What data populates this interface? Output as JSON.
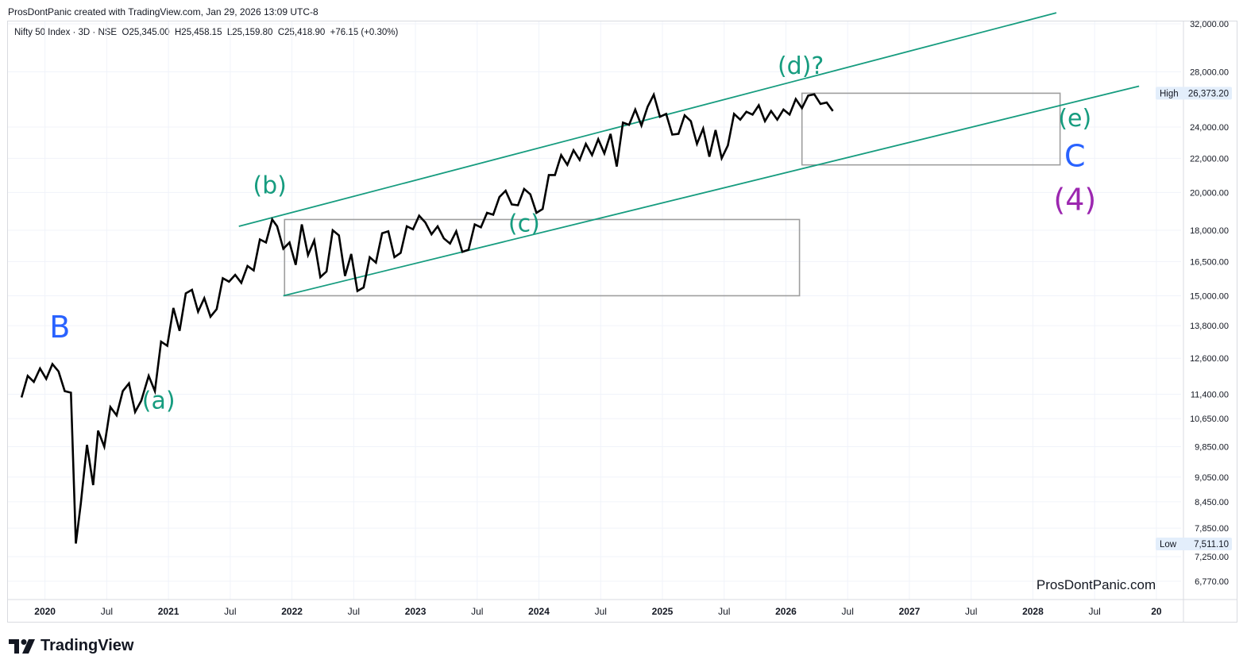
{
  "header": {
    "attribution": "ProsDontPanic created with TradingView.com, Jan 29, 2026 13:09 UTC-8"
  },
  "symbol_info": {
    "name": "Nifty 50 Index · 3D · NSE",
    "open": "O25,345.00",
    "high": "H25,458.15",
    "low": "L25,159.80",
    "close": "C25,418.90",
    "change": "+76.15 (+0.30%)"
  },
  "branding": {
    "logo_text": "TradingView",
    "watermark": "ProsDontPanic.com"
  },
  "colors": {
    "price_line": "#000000",
    "channel": "#169c7f",
    "box": "#9e9e9e",
    "wave_blue": "#2962ff",
    "wave_green": "#169c7f",
    "wave_purple": "#9c27b0",
    "grid": "#f0f3fa"
  },
  "chart_data": {
    "type": "line",
    "title": "Nifty 50 Index · 3D · NSE",
    "scale": "log",
    "ylim": [
      6600,
      33000
    ],
    "xlim": [
      2019.7,
      2029.2
    ],
    "y_ticks": [
      6770,
      7250,
      7850,
      8450,
      9050,
      9850,
      10650,
      11400,
      12600,
      13800,
      15000,
      16500,
      18000,
      20000,
      22000,
      24000,
      28000,
      32000
    ],
    "y_tick_labels": [
      "6,770.00",
      "7,250.00",
      "7,850.00",
      "8,450.00",
      "9,050.00",
      "9,850.00",
      "10,650.00",
      "11,400.00",
      "12,600.00",
      "13,800.00",
      "15,000.00",
      "16,500.00",
      "18,000.00",
      "20,000.00",
      "22,000.00",
      "24,000.00",
      "28,000.00",
      "32,000.00"
    ],
    "x_ticks": [
      {
        "t": 2020.0,
        "label": "2020",
        "year": true
      },
      {
        "t": 2020.5,
        "label": "Jul",
        "year": false
      },
      {
        "t": 2021.0,
        "label": "2021",
        "year": true
      },
      {
        "t": 2021.5,
        "label": "Jul",
        "year": false
      },
      {
        "t": 2022.0,
        "label": "2022",
        "year": true
      },
      {
        "t": 2022.5,
        "label": "Jul",
        "year": false
      },
      {
        "t": 2023.0,
        "label": "2023",
        "year": true
      },
      {
        "t": 2023.5,
        "label": "Jul",
        "year": false
      },
      {
        "t": 2024.0,
        "label": "2024",
        "year": true
      },
      {
        "t": 2024.5,
        "label": "Jul",
        "year": false
      },
      {
        "t": 2025.0,
        "label": "2025",
        "year": true
      },
      {
        "t": 2025.5,
        "label": "Jul",
        "year": false
      },
      {
        "t": 2026.0,
        "label": "2026",
        "year": true
      },
      {
        "t": 2026.5,
        "label": "Jul",
        "year": false
      },
      {
        "t": 2027.0,
        "label": "2027",
        "year": true
      },
      {
        "t": 2027.5,
        "label": "Jul",
        "year": false
      },
      {
        "t": 2028.0,
        "label": "2028",
        "year": true
      },
      {
        "t": 2028.5,
        "label": "Jul",
        "year": false
      },
      {
        "t": 2029.0,
        "label": "20",
        "year": true
      }
    ],
    "series": [
      {
        "name": "Nifty 50",
        "points": [
          [
            2019.81,
            11300
          ],
          [
            2019.86,
            12000
          ],
          [
            2019.91,
            11800
          ],
          [
            2019.96,
            12250
          ],
          [
            2020.01,
            11900
          ],
          [
            2020.06,
            12400
          ],
          [
            2020.11,
            12150
          ],
          [
            2020.16,
            11500
          ],
          [
            2020.21,
            11450
          ],
          [
            2020.25,
            7520
          ],
          [
            2020.29,
            8400
          ],
          [
            2020.34,
            9900
          ],
          [
            2020.39,
            8850
          ],
          [
            2020.43,
            10300
          ],
          [
            2020.48,
            9850
          ],
          [
            2020.53,
            11000
          ],
          [
            2020.58,
            10750
          ],
          [
            2020.63,
            11500
          ],
          [
            2020.68,
            11750
          ],
          [
            2020.73,
            10850
          ],
          [
            2020.78,
            11200
          ],
          [
            2020.84,
            12000
          ],
          [
            2020.89,
            11500
          ],
          [
            2020.94,
            13200
          ],
          [
            2020.99,
            13050
          ],
          [
            2021.04,
            14500
          ],
          [
            2021.09,
            13600
          ],
          [
            2021.14,
            15100
          ],
          [
            2021.19,
            15250
          ],
          [
            2021.24,
            14350
          ],
          [
            2021.29,
            14900
          ],
          [
            2021.34,
            14150
          ],
          [
            2021.39,
            14450
          ],
          [
            2021.44,
            15750
          ],
          [
            2021.49,
            15600
          ],
          [
            2021.54,
            15900
          ],
          [
            2021.59,
            15550
          ],
          [
            2021.64,
            16300
          ],
          [
            2021.69,
            16100
          ],
          [
            2021.74,
            17550
          ],
          [
            2021.79,
            17400
          ],
          [
            2021.84,
            18550
          ],
          [
            2021.88,
            18200
          ],
          [
            2021.93,
            17100
          ],
          [
            2021.98,
            17400
          ],
          [
            2022.03,
            16350
          ],
          [
            2022.08,
            18300
          ],
          [
            2022.13,
            16800
          ],
          [
            2022.18,
            17500
          ],
          [
            2022.23,
            15800
          ],
          [
            2022.28,
            16050
          ],
          [
            2022.33,
            18000
          ],
          [
            2022.38,
            17750
          ],
          [
            2022.43,
            15850
          ],
          [
            2022.48,
            16850
          ],
          [
            2022.53,
            15200
          ],
          [
            2022.58,
            15350
          ],
          [
            2022.63,
            16700
          ],
          [
            2022.68,
            16450
          ],
          [
            2022.73,
            17850
          ],
          [
            2022.78,
            17950
          ],
          [
            2022.83,
            16700
          ],
          [
            2022.88,
            16900
          ],
          [
            2022.93,
            18200
          ],
          [
            2022.98,
            18050
          ],
          [
            2023.03,
            18750
          ],
          [
            2023.08,
            18400
          ],
          [
            2023.13,
            17800
          ],
          [
            2023.18,
            18200
          ],
          [
            2023.23,
            17600
          ],
          [
            2023.28,
            17350
          ],
          [
            2023.33,
            17950
          ],
          [
            2023.38,
            16950
          ],
          [
            2023.43,
            17050
          ],
          [
            2023.48,
            18300
          ],
          [
            2023.53,
            18150
          ],
          [
            2023.58,
            18900
          ],
          [
            2023.63,
            18800
          ],
          [
            2023.68,
            19750
          ],
          [
            2023.73,
            20100
          ],
          [
            2023.78,
            19350
          ],
          [
            2023.83,
            19300
          ],
          [
            2023.88,
            20200
          ],
          [
            2023.93,
            19900
          ],
          [
            2023.98,
            18900
          ],
          [
            2024.03,
            19100
          ],
          [
            2024.08,
            21000
          ],
          [
            2024.13,
            21000
          ],
          [
            2024.18,
            22200
          ],
          [
            2024.23,
            21600
          ],
          [
            2024.28,
            22500
          ],
          [
            2024.33,
            21900
          ],
          [
            2024.38,
            22900
          ],
          [
            2024.43,
            22200
          ],
          [
            2024.48,
            23200
          ],
          [
            2024.53,
            22300
          ],
          [
            2024.58,
            23550
          ],
          [
            2024.63,
            21500
          ],
          [
            2024.68,
            24300
          ],
          [
            2024.73,
            24150
          ],
          [
            2024.78,
            25200
          ],
          [
            2024.83,
            24100
          ],
          [
            2024.88,
            25400
          ],
          [
            2024.93,
            26270
          ],
          [
            2024.98,
            24700
          ],
          [
            2025.03,
            24900
          ],
          [
            2025.08,
            23500
          ],
          [
            2025.13,
            23550
          ],
          [
            2025.18,
            24800
          ],
          [
            2025.23,
            24400
          ],
          [
            2025.28,
            22900
          ],
          [
            2025.33,
            23900
          ],
          [
            2025.38,
            22100
          ],
          [
            2025.43,
            23800
          ],
          [
            2025.48,
            22000
          ],
          [
            2025.53,
            22800
          ],
          [
            2025.58,
            24900
          ],
          [
            2025.63,
            24500
          ],
          [
            2025.68,
            25050
          ],
          [
            2025.73,
            24850
          ],
          [
            2025.78,
            25500
          ],
          [
            2025.83,
            24400
          ],
          [
            2025.88,
            25100
          ],
          [
            2025.93,
            24500
          ],
          [
            2025.98,
            25200
          ],
          [
            2026.03,
            24850
          ],
          [
            2026.08,
            25950
          ],
          [
            2026.13,
            25300
          ],
          [
            2026.18,
            26200
          ],
          [
            2026.23,
            26300
          ],
          [
            2026.28,
            25600
          ],
          [
            2026.33,
            25700
          ],
          [
            2026.38,
            25100
          ]
        ]
      }
    ],
    "channel_lines": [
      {
        "name": "upper",
        "from": [
          2021.57,
          18200
        ],
        "to": [
          2028.19,
          33000
        ]
      },
      {
        "name": "lower",
        "from": [
          2021.93,
          15000
        ],
        "to": [
          2028.86,
          26900
        ]
      }
    ],
    "boxes": [
      {
        "name": "range-bc",
        "t0": 2021.94,
        "t1": 2026.11,
        "p_low": 15000,
        "p_high": 18550
      },
      {
        "name": "range-de",
        "t0": 2026.13,
        "t1": 2028.22,
        "p_low": 21600,
        "p_high": 26373
      }
    ],
    "wave_labels": [
      {
        "text": "B",
        "t": 2020.12,
        "p": 13350,
        "color": "wave_blue"
      },
      {
        "text": "(a)",
        "t": 2020.92,
        "p": 10950,
        "color": "wave_green"
      },
      {
        "text": "(b)",
        "t": 2021.82,
        "p": 19950,
        "color": "wave_green"
      },
      {
        "text": "(c)",
        "t": 2023.88,
        "p": 17950,
        "color": "wave_green"
      },
      {
        "text": "(d)?",
        "t": 2026.12,
        "p": 27850,
        "color": "wave_green"
      },
      {
        "text": "(e)",
        "t": 2028.34,
        "p": 24050,
        "color": "wave_green"
      },
      {
        "text": "C",
        "t": 2028.34,
        "p": 21500,
        "color": "wave_blue"
      },
      {
        "text": "(4)",
        "t": 2028.34,
        "p": 19050,
        "color": "wave_purple"
      }
    ],
    "markers": [
      {
        "label": "High",
        "value": "26,373.20",
        "price": 26373.2
      },
      {
        "label": "Low",
        "value": "7,511.10",
        "price": 7511.1
      }
    ]
  }
}
